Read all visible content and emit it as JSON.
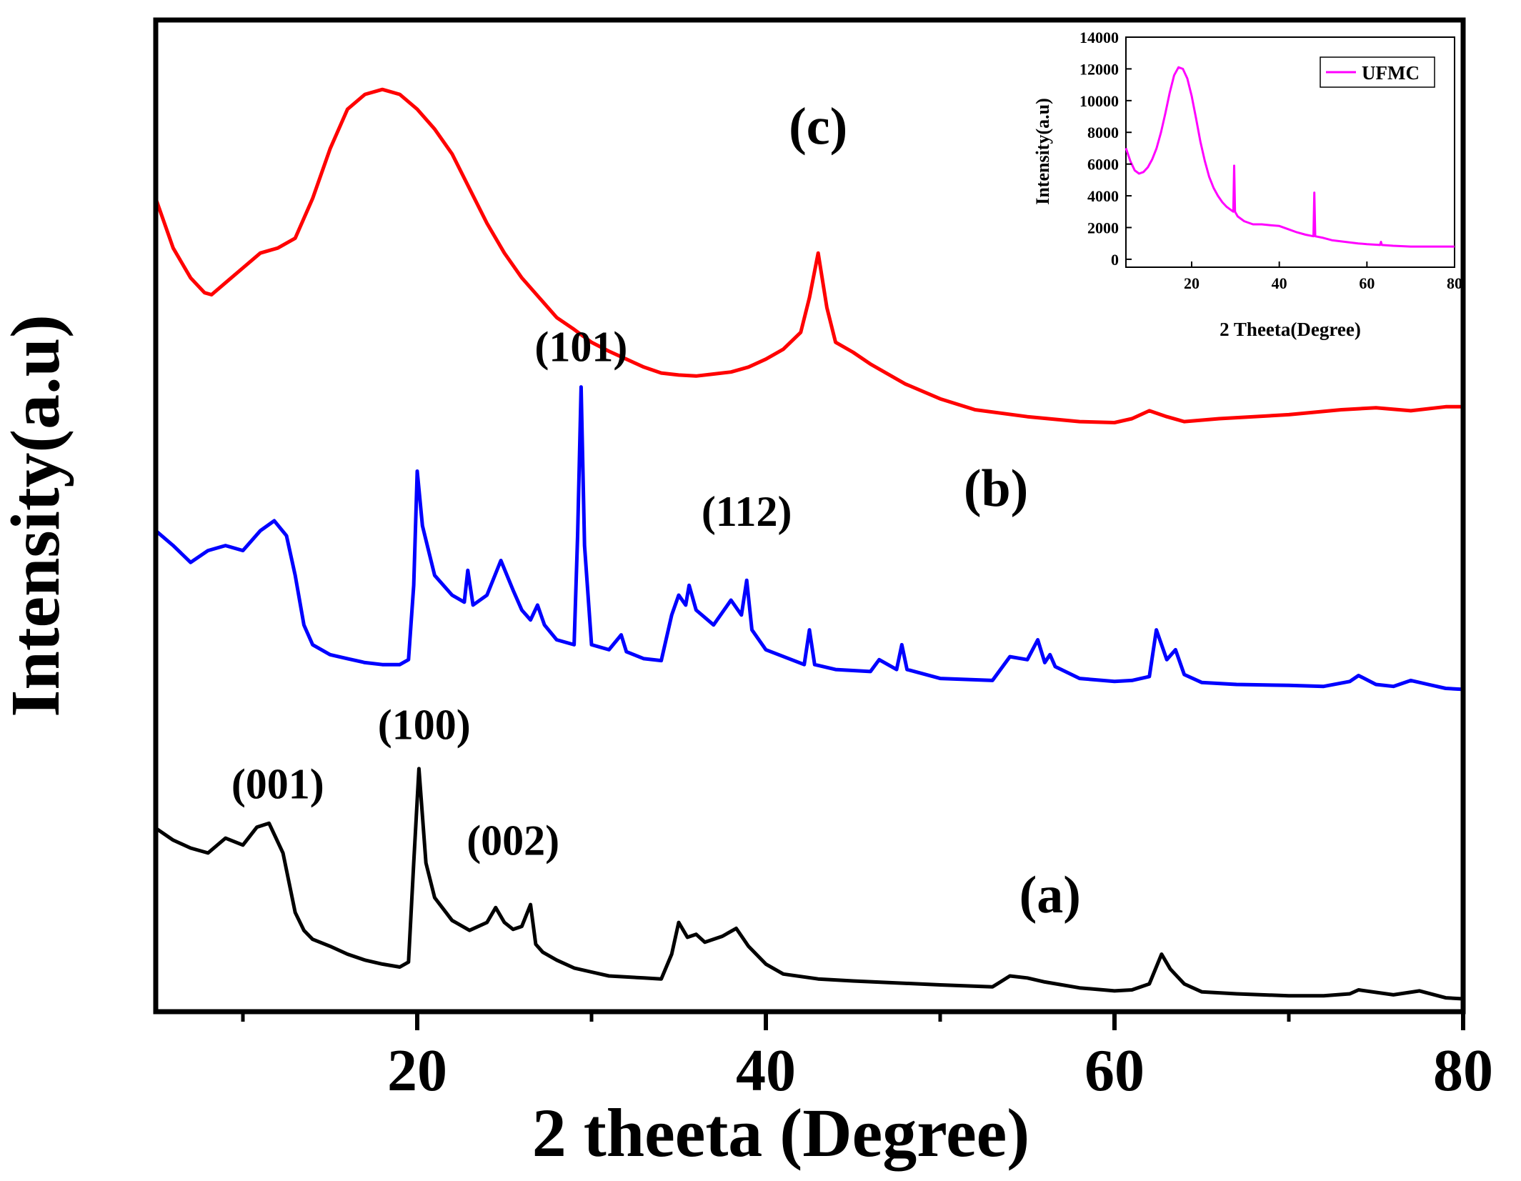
{
  "chart_data": [
    {
      "type": "line",
      "title": "",
      "xlabel": "2 theeta (Degree)",
      "ylabel": "Intensity(a.u)",
      "xlim": [
        5,
        80
      ],
      "ylim": [
        0,
        100
      ],
      "xticks": [
        20,
        40,
        60,
        80
      ],
      "xtick_labels": [
        "20",
        "40",
        "60",
        "80"
      ],
      "grid": false,
      "series": [
        {
          "name": "(a)",
          "color": "#000000",
          "x": [
            5,
            6,
            7,
            8,
            9,
            10,
            10.8,
            11.5,
            12.3,
            13,
            13.5,
            14,
            15,
            16,
            17,
            18,
            19,
            19.5,
            19.8,
            20.1,
            20.5,
            21,
            22,
            23,
            24,
            24.5,
            25,
            25.5,
            26,
            26.5,
            26.8,
            27.2,
            28,
            29,
            30,
            31,
            32,
            33,
            34,
            34.6,
            35,
            35.5,
            36,
            36.5,
            37.5,
            38.3,
            39,
            40,
            41,
            43,
            45,
            50,
            53,
            54,
            55,
            56,
            58,
            60,
            61,
            62,
            62.7,
            63.2,
            64,
            65,
            67,
            70,
            72,
            73.5,
            74,
            76,
            77.5,
            79,
            80
          ],
          "y": [
            18.5,
            17.3,
            16.5,
            16.0,
            17.5,
            16.8,
            18.6,
            19.0,
            16.0,
            10.0,
            8.2,
            7.3,
            6.6,
            5.8,
            5.2,
            4.8,
            4.5,
            5.0,
            15.0,
            24.5,
            15.0,
            11.5,
            9.2,
            8.2,
            9.0,
            10.5,
            9.0,
            8.3,
            8.6,
            10.8,
            6.8,
            6.0,
            5.2,
            4.4,
            4.0,
            3.6,
            3.5,
            3.4,
            3.3,
            5.8,
            9.0,
            7.5,
            7.8,
            7.0,
            7.6,
            8.4,
            6.6,
            4.8,
            3.8,
            3.3,
            3.1,
            2.7,
            2.5,
            3.6,
            3.4,
            3.0,
            2.4,
            2.1,
            2.2,
            2.8,
            5.8,
            4.3,
            2.8,
            2.0,
            1.8,
            1.6,
            1.6,
            1.8,
            2.2,
            1.7,
            2.1,
            1.4,
            1.3
          ]
        },
        {
          "name": "(b)",
          "color": "#0000ff",
          "x": [
            5,
            6,
            7,
            8,
            9,
            10,
            11,
            11.8,
            12.5,
            13,
            13.5,
            14,
            15,
            16,
            17,
            18,
            19,
            19.5,
            19.8,
            20,
            20.3,
            21,
            22,
            22.7,
            22.9,
            23.2,
            24,
            24.8,
            25.5,
            26,
            26.5,
            26.9,
            27.3,
            28,
            29,
            29.2,
            29.4,
            29.6,
            30,
            31,
            31.7,
            32,
            33,
            34,
            34.6,
            35,
            35.4,
            35.6,
            36,
            37,
            38,
            38.6,
            38.9,
            39.2,
            40,
            42.2,
            42.5,
            42.8,
            44,
            46,
            46.5,
            47.5,
            47.8,
            48.1,
            50,
            53,
            54,
            55,
            55.6,
            56,
            56.3,
            56.6,
            58,
            60,
            61,
            62,
            62.4,
            63,
            63.5,
            64,
            65,
            67,
            70,
            72,
            73.5,
            74,
            75,
            76,
            77,
            78,
            79,
            80
          ],
          "y": [
            48.5,
            47.0,
            45.3,
            46.5,
            47.0,
            46.5,
            48.5,
            49.5,
            48.0,
            44.0,
            39.0,
            37.0,
            36.0,
            35.6,
            35.2,
            35.0,
            35.0,
            35.5,
            43.0,
            54.5,
            49.0,
            44.0,
            42.0,
            41.3,
            44.5,
            41.0,
            42.0,
            45.5,
            42.5,
            40.5,
            39.5,
            41.0,
            39.0,
            37.5,
            37.0,
            48.0,
            63.0,
            47.0,
            37.0,
            36.5,
            38.0,
            36.3,
            35.6,
            35.4,
            40.0,
            42.0,
            41.0,
            43.0,
            40.5,
            39.0,
            41.5,
            40.0,
            43.5,
            38.5,
            36.5,
            35.0,
            38.5,
            35.0,
            34.5,
            34.3,
            35.5,
            34.5,
            37.0,
            34.5,
            33.6,
            33.4,
            35.8,
            35.5,
            37.5,
            35.2,
            36.0,
            34.8,
            33.6,
            33.3,
            33.4,
            33.8,
            38.5,
            35.5,
            36.5,
            34.0,
            33.2,
            33.0,
            32.9,
            32.8,
            33.3,
            33.9,
            33.0,
            32.8,
            33.4,
            33.0,
            32.6,
            32.5
          ]
        },
        {
          "name": "(c)",
          "color": "#ff0000",
          "x": [
            5,
            6,
            7,
            7.8,
            8.2,
            9,
            10,
            11,
            12,
            13,
            14,
            15,
            16,
            17,
            18,
            19,
            20,
            21,
            22,
            23,
            24,
            25,
            26,
            27,
            28,
            29,
            30,
            31,
            32,
            33,
            34,
            35,
            36,
            37,
            38,
            39,
            40,
            41,
            42,
            42.5,
            43,
            43.5,
            44,
            45,
            46,
            48,
            50,
            52,
            55,
            58,
            60,
            61,
            62,
            63,
            64,
            66,
            70,
            73,
            75,
            77,
            79,
            80
          ],
          "y": [
            82.0,
            77.0,
            74.0,
            72.5,
            72.3,
            73.5,
            75.0,
            76.5,
            77.0,
            78.0,
            82.0,
            87.0,
            91.0,
            92.5,
            93.0,
            92.5,
            91.0,
            89.0,
            86.5,
            83.0,
            79.5,
            76.5,
            74.0,
            72.0,
            70.0,
            68.8,
            67.5,
            66.6,
            65.8,
            65.0,
            64.4,
            64.2,
            64.1,
            64.3,
            64.5,
            65.0,
            65.8,
            66.8,
            68.5,
            72.0,
            76.5,
            71.0,
            67.5,
            66.5,
            65.3,
            63.3,
            61.8,
            60.7,
            60.0,
            59.5,
            59.4,
            59.8,
            60.6,
            60.0,
            59.5,
            59.8,
            60.2,
            60.7,
            60.9,
            60.6,
            61.0,
            61.0
          ]
        }
      ],
      "annotations": [
        {
          "text": "(001)",
          "x": 12,
          "y": 21.5
        },
        {
          "text": "(100)",
          "x": 20.4,
          "y": 27.5
        },
        {
          "text": "(002)",
          "x": 25.5,
          "y": 15.8
        },
        {
          "text": "(a)",
          "x": 56.3,
          "y": 10.0
        },
        {
          "text": "(101)",
          "x": 29.4,
          "y": 65.6
        },
        {
          "text": "(112)",
          "x": 38.9,
          "y": 49.0
        },
        {
          "text": "(b)",
          "x": 53.2,
          "y": 51.0
        },
        {
          "text": "(c)",
          "x": 43.0,
          "y": 87.5
        }
      ]
    },
    {
      "type": "line",
      "title": "",
      "xlabel": "2 Theeta(Degree)",
      "ylabel": "Intensity(a.u)",
      "xlim": [
        5,
        80
      ],
      "ylim": [
        -500,
        14000
      ],
      "xticks": [
        20,
        40,
        60,
        80
      ],
      "xtick_labels": [
        "20",
        "40",
        "60",
        "80"
      ],
      "yticks": [
        0,
        2000,
        4000,
        6000,
        8000,
        10000,
        12000,
        14000
      ],
      "ytick_labels": [
        "0",
        "2000",
        "4000",
        "6000",
        "8000",
        "10000",
        "12000",
        "14000"
      ],
      "legend": "top-right",
      "grid": false,
      "series": [
        {
          "name": "UFMC",
          "color": "#ff00ff",
          "x": [
            5,
            6,
            7,
            8,
            9,
            10,
            11,
            12,
            13,
            14,
            15,
            16,
            17,
            18,
            19,
            20,
            21,
            22,
            23,
            24,
            25,
            26,
            27,
            28,
            29,
            29.5,
            29.7,
            29.9,
            30.5,
            32,
            34,
            36,
            38,
            40,
            42,
            44,
            46,
            47.8,
            48,
            48.2,
            50,
            52,
            55,
            58,
            60,
            63,
            63.2,
            63.4,
            66,
            70,
            75,
            80
          ],
          "y": [
            7000,
            6200,
            5600,
            5400,
            5500,
            5800,
            6300,
            7000,
            8000,
            9200,
            10500,
            11600,
            12100,
            12000,
            11400,
            10300,
            8900,
            7400,
            6200,
            5200,
            4500,
            4000,
            3600,
            3300,
            3100,
            3000,
            5900,
            3000,
            2700,
            2400,
            2200,
            2200,
            2150,
            2100,
            1900,
            1700,
            1550,
            1450,
            4200,
            1450,
            1350,
            1200,
            1100,
            1000,
            950,
            900,
            1100,
            900,
            850,
            800,
            800,
            800
          ]
        }
      ]
    }
  ]
}
